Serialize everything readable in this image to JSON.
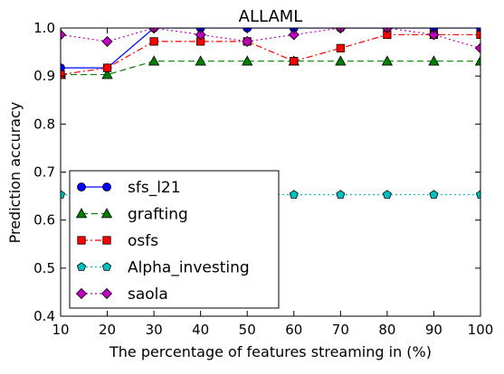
{
  "chart_data": {
    "type": "line",
    "title": "ALLAML",
    "xlabel": "The percentage of features streaming in (%)",
    "ylabel": "Prediction accuracy",
    "x": [
      10,
      20,
      30,
      40,
      50,
      60,
      70,
      80,
      90,
      100
    ],
    "xlim": [
      10,
      100
    ],
    "ylim": [
      0.4,
      1.0
    ],
    "xticks": [
      10,
      20,
      30,
      40,
      50,
      60,
      70,
      80,
      90,
      100
    ],
    "yticks": [
      0.4,
      0.5,
      0.6,
      0.7,
      0.8,
      0.9,
      1.0
    ],
    "xtick_labels": [
      "10",
      "20",
      "30",
      "40",
      "50",
      "60",
      "70",
      "80",
      "90",
      "100"
    ],
    "ytick_labels": [
      "0.4",
      "0.5",
      "0.6",
      "0.7",
      "0.8",
      "0.9",
      "1.0"
    ],
    "grid": false,
    "legend_position": "lower-left",
    "series": [
      {
        "name": "sfs_l21",
        "values": [
          0.917,
          0.917,
          1.0,
          1.0,
          1.0,
          1.0,
          1.0,
          1.0,
          1.0,
          1.0
        ],
        "color": "#0000ff",
        "marker": "circle",
        "line_style": "solid"
      },
      {
        "name": "grafting",
        "values": [
          0.903,
          0.903,
          0.931,
          0.931,
          0.931,
          0.931,
          0.931,
          0.931,
          0.931,
          0.931
        ],
        "color": "#008000",
        "marker": "triangle",
        "line_style": "dashed"
      },
      {
        "name": "osfs",
        "values": [
          0.903,
          0.917,
          0.972,
          0.972,
          0.972,
          0.931,
          0.958,
          0.986,
          0.986,
          0.986
        ],
        "color": "#ff0000",
        "marker": "square",
        "line_style": "dashdot"
      },
      {
        "name": "Alpha_investing",
        "values": [
          0.653,
          0.653,
          0.653,
          0.653,
          0.653,
          0.653,
          0.653,
          0.653,
          0.653,
          0.653
        ],
        "color": "#00bfbf",
        "marker": "pentagon",
        "line_style": "dotted"
      },
      {
        "name": "saola",
        "values": [
          0.986,
          0.972,
          1.0,
          0.986,
          0.972,
          0.986,
          1.0,
          1.0,
          0.986,
          0.958
        ],
        "color": "#bf00bf",
        "marker": "diamond",
        "line_style": "dotted"
      }
    ]
  }
}
